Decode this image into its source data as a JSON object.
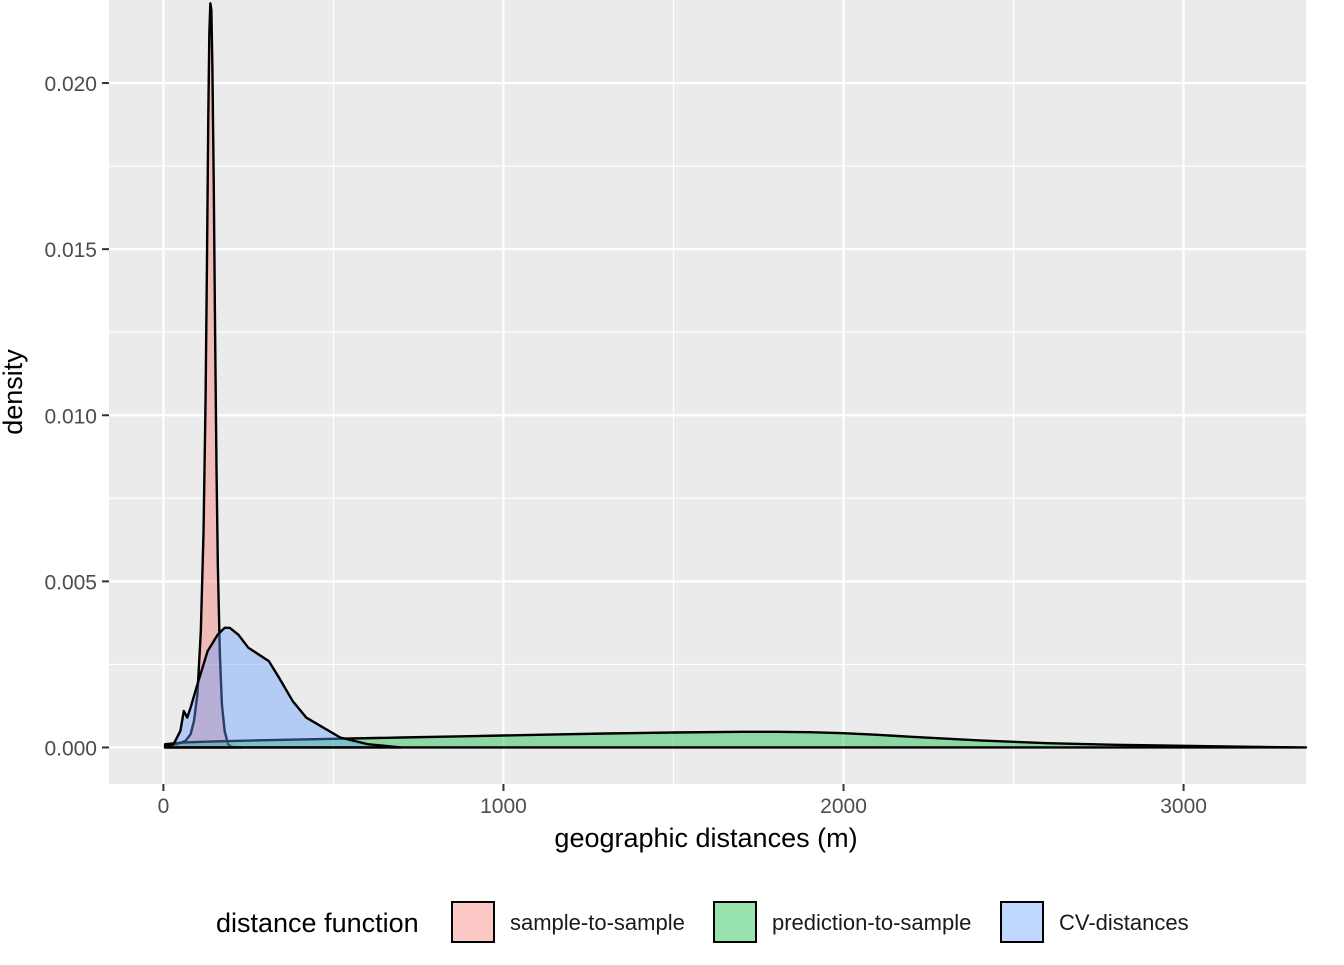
{
  "chart_data": {
    "type": "area",
    "subtype": "density",
    "title": "",
    "xlabel": "geographic distances (m)",
    "ylabel": "density",
    "xlim": [
      -160,
      3360
    ],
    "ylim": [
      -0.0011,
      0.0225
    ],
    "x_ticks": [
      0,
      1000,
      2000,
      3000
    ],
    "x_tick_labels": [
      "0",
      "1000",
      "2000",
      "3000"
    ],
    "y_ticks": [
      0.0,
      0.005,
      0.01,
      0.015,
      0.02
    ],
    "y_tick_labels": [
      "0.000",
      "0.005",
      "0.010",
      "0.015",
      "0.020"
    ],
    "grid": true,
    "legend": {
      "position": "bottom",
      "title": "distance function"
    },
    "series": [
      {
        "name": "sample-to-sample",
        "color": "#F8766D",
        "points": [
          [
            5,
            5e-05
          ],
          [
            40,
            0.0001
          ],
          [
            65,
            0.0002
          ],
          [
            80,
            0.0004
          ],
          [
            90,
            0.0008
          ],
          [
            100,
            0.0016
          ],
          [
            110,
            0.0035
          ],
          [
            118,
            0.0065
          ],
          [
            124,
            0.0105
          ],
          [
            128,
            0.0145
          ],
          [
            132,
            0.019
          ],
          [
            135,
            0.0215
          ],
          [
            138,
            0.0224
          ],
          [
            141,
            0.0222
          ],
          [
            144,
            0.0205
          ],
          [
            148,
            0.017
          ],
          [
            152,
            0.0125
          ],
          [
            156,
            0.0085
          ],
          [
            160,
            0.0055
          ],
          [
            166,
            0.0028
          ],
          [
            172,
            0.0013
          ],
          [
            180,
            0.0005
          ],
          [
            190,
            0.0001
          ],
          [
            200,
            2e-05
          ],
          [
            230,
            0.0
          ]
        ]
      },
      {
        "name": "prediction-to-sample",
        "color": "#00BA38",
        "points": [
          [
            5,
            0.0001
          ],
          [
            60,
            0.00015
          ],
          [
            150,
            0.00018
          ],
          [
            300,
            0.00022
          ],
          [
            500,
            0.00026
          ],
          [
            700,
            0.0003
          ],
          [
            900,
            0.00034
          ],
          [
            1100,
            0.00038
          ],
          [
            1300,
            0.00042
          ],
          [
            1500,
            0.00045
          ],
          [
            1700,
            0.00047
          ],
          [
            1800,
            0.00047
          ],
          [
            1900,
            0.00046
          ],
          [
            2000,
            0.00043
          ],
          [
            2100,
            0.00038
          ],
          [
            2200,
            0.00032
          ],
          [
            2400,
            0.00021
          ],
          [
            2600,
            0.00013
          ],
          [
            2800,
            8e-05
          ],
          [
            3000,
            5e-05
          ],
          [
            3200,
            2e-05
          ],
          [
            3360,
            0.0
          ]
        ]
      },
      {
        "name": "CV-distances",
        "color": "#619CFF",
        "points": [
          [
            5,
            2e-05
          ],
          [
            30,
            0.0001
          ],
          [
            50,
            0.0005
          ],
          [
            60,
            0.0011
          ],
          [
            70,
            0.0009
          ],
          [
            80,
            0.0012
          ],
          [
            100,
            0.0019
          ],
          [
            130,
            0.0029
          ],
          [
            160,
            0.0034
          ],
          [
            180,
            0.0036
          ],
          [
            195,
            0.0036
          ],
          [
            220,
            0.0034
          ],
          [
            250,
            0.003
          ],
          [
            280,
            0.0028
          ],
          [
            310,
            0.0026
          ],
          [
            340,
            0.0021
          ],
          [
            380,
            0.0014
          ],
          [
            420,
            0.0009
          ],
          [
            470,
            0.0006
          ],
          [
            520,
            0.0003
          ],
          [
            600,
            0.0001
          ],
          [
            680,
            2e-05
          ],
          [
            700,
            0.0
          ]
        ]
      }
    ]
  }
}
